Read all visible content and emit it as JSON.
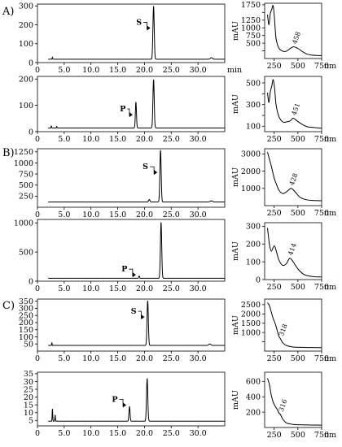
{
  "chart_data": {
    "type": "line",
    "panel_labels": [
      "A)",
      "B)",
      "C)"
    ],
    "x_unit_chrom": "min",
    "x_unit_spec": "nm",
    "y_label_spec": "mAU",
    "chromatograms": [
      {
        "id": "A1",
        "xlim": [
          0,
          35
        ],
        "ylim": [
          0,
          310
        ],
        "x_ticks": [
          0,
          5,
          10,
          15,
          20,
          25,
          30
        ],
        "x_tick_labels": [
          "0",
          "5.0",
          "10.0",
          "15.0",
          "20.0",
          "25.0",
          "30.0"
        ],
        "y_ticks": [
          0,
          100,
          200,
          300
        ],
        "y_tick_labels": [
          "0",
          "100",
          "200",
          "300"
        ],
        "baseline": 18,
        "peaks": [
          {
            "x": 2.8,
            "y": 28,
            "w": 0.05
          },
          {
            "x": 21.7,
            "y": 300,
            "w": 0.12
          },
          {
            "x": 32.5,
            "y": 26,
            "w": 0.2
          }
        ],
        "labels": [
          {
            "text": "S",
            "x": 19.5,
            "y": 200,
            "peak_x": 21.7
          }
        ]
      },
      {
        "id": "A2",
        "xlim": [
          0,
          35
        ],
        "ylim": [
          0,
          210
        ],
        "x_ticks": [
          0,
          5,
          10,
          15,
          20,
          25,
          30
        ],
        "x_tick_labels": [
          "0",
          "5.0",
          "10.0",
          "15.0",
          "20.0",
          "25.0",
          "30.0"
        ],
        "y_ticks": [
          0,
          100,
          200
        ],
        "y_tick_labels": [
          "0",
          "100",
          "200"
        ],
        "baseline": 14,
        "peaks": [
          {
            "x": 2.6,
            "y": 22,
            "w": 0.05
          },
          {
            "x": 3.6,
            "y": 20,
            "w": 0.05
          },
          {
            "x": 18.4,
            "y": 113,
            "w": 0.1
          },
          {
            "x": 21.7,
            "y": 198,
            "w": 0.12
          }
        ],
        "labels": [
          {
            "text": "P",
            "x": 16.5,
            "y": 77,
            "peak_x": 18.4
          }
        ]
      },
      {
        "id": "B1",
        "xlim": [
          0,
          35
        ],
        "ylim": [
          0,
          1320
        ],
        "x_ticks": [
          0,
          5,
          10,
          15,
          20,
          25,
          30
        ],
        "x_tick_labels": [
          "0",
          "5.0",
          "10.0",
          "15.0",
          "20.0",
          "25.0",
          "30.0"
        ],
        "y_ticks": [
          250,
          500,
          750,
          1000,
          1250
        ],
        "y_tick_labels": [
          "250",
          "500",
          "750",
          "1000",
          "1250"
        ],
        "baseline": 120,
        "peaks": [
          {
            "x": 20.9,
            "y": 175,
            "w": 0.12
          },
          {
            "x": 23.0,
            "y": 1290,
            "w": 0.12
          },
          {
            "x": 32.5,
            "y": 145,
            "w": 0.2
          }
        ],
        "labels": [
          {
            "text": "S",
            "x": 20.7,
            "y": 860,
            "peak_x": 23.0
          }
        ]
      },
      {
        "id": "B2",
        "xlim": [
          0,
          35
        ],
        "ylim": [
          0,
          1060
        ],
        "x_ticks": [
          0,
          5,
          10,
          15,
          20,
          25,
          30
        ],
        "x_tick_labels": [
          "0",
          "5.0",
          "10.0",
          "15.0",
          "20.0",
          "25.0",
          "30.0"
        ],
        "y_ticks": [
          0,
          500,
          1000
        ],
        "y_tick_labels": [
          "0",
          "500",
          "1000"
        ],
        "baseline": 50,
        "peaks": [
          {
            "x": 19.0,
            "y": 90,
            "w": 0.08
          },
          {
            "x": 23.1,
            "y": 1010,
            "w": 0.12
          }
        ],
        "labels": [
          {
            "text": "P",
            "x": 16.8,
            "y": 165,
            "peak_x": 19.0
          }
        ]
      },
      {
        "id": "C1",
        "xlim": [
          0,
          35
        ],
        "ylim": [
          0,
          365
        ],
        "x_ticks": [
          0,
          5,
          10,
          15,
          20,
          25,
          30
        ],
        "x_tick_labels": [
          "0",
          "5.0",
          "10.0",
          "15.0",
          "20.0",
          "25.0",
          "30.0"
        ],
        "y_ticks": [
          50,
          100,
          150,
          200,
          250,
          300,
          350
        ],
        "y_tick_labels": [
          "50",
          "100",
          "150",
          "200",
          "250",
          "300",
          "350"
        ],
        "baseline": 40,
        "peaks": [
          {
            "x": 2.7,
            "y": 60,
            "w": 0.04
          },
          {
            "x": 20.6,
            "y": 355,
            "w": 0.12
          },
          {
            "x": 32.2,
            "y": 50,
            "w": 0.2
          }
        ],
        "labels": [
          {
            "text": "S",
            "x": 18.5,
            "y": 262,
            "peak_x": 20.6
          }
        ]
      },
      {
        "id": "C2",
        "xlim": [
          0,
          35
        ],
        "ylim": [
          1.5,
          36
        ],
        "x_ticks": [
          0,
          5,
          10,
          15,
          20,
          25,
          30
        ],
        "x_tick_labels": [
          "0",
          "5.0",
          "10.0",
          "15.0",
          "20.0",
          "25.0",
          "30.0"
        ],
        "y_ticks": [
          5,
          10,
          15,
          20,
          25,
          30,
          35
        ],
        "y_tick_labels": [
          "5",
          "10",
          "15",
          "20",
          "25",
          "30",
          "35"
        ],
        "baseline": 4.5,
        "peaks": [
          {
            "x": 2.8,
            "y": 12.5,
            "w": 0.05
          },
          {
            "x": 3.3,
            "y": 8.5,
            "w": 0.05
          },
          {
            "x": 17.2,
            "y": 14.0,
            "w": 0.1
          },
          {
            "x": 20.5,
            "y": 32.0,
            "w": 0.12
          }
        ],
        "labels": [
          {
            "text": "P",
            "x": 15.0,
            "y": 17,
            "peak_x": 17.2
          }
        ]
      }
    ],
    "spectra": [
      {
        "id": "A1",
        "xlim": [
          150,
          750
        ],
        "ylim": [
          0,
          1800
        ],
        "x_ticks": [
          250,
          500,
          750
        ],
        "x_tick_labels": [
          "250",
          "500",
          "750"
        ],
        "y_ticks": [
          250,
          500,
          750,
          1000,
          1250,
          1500,
          1750
        ],
        "y_tick_labels": [
          "",
          "500",
          "750",
          "1000",
          "1250",
          "",
          "1750"
        ],
        "points": [
          [
            180,
            1430
          ],
          [
            195,
            1100
          ],
          [
            210,
            1470
          ],
          [
            225,
            1600
          ],
          [
            240,
            1720
          ],
          [
            255,
            1250
          ],
          [
            270,
            650
          ],
          [
            300,
            340
          ],
          [
            340,
            240
          ],
          [
            380,
            240
          ],
          [
            420,
            330
          ],
          [
            458,
            380
          ],
          [
            500,
            330
          ],
          [
            550,
            220
          ],
          [
            600,
            140
          ],
          [
            650,
            110
          ],
          [
            700,
            100
          ],
          [
            750,
            95
          ]
        ],
        "annotation": {
          "text": "458",
          "x": 458
        }
      },
      {
        "id": "A2",
        "xlim": [
          150,
          750
        ],
        "ylim": [
          50,
          560
        ],
        "x_ticks": [
          250,
          500,
          750
        ],
        "x_tick_labels": [
          "250",
          "500",
          "750"
        ],
        "y_ticks": [
          100,
          200,
          300,
          400,
          500
        ],
        "y_tick_labels": [
          "100",
          "",
          "300",
          "",
          "500"
        ],
        "points": [
          [
            180,
            410
          ],
          [
            195,
            320
          ],
          [
            210,
            420
          ],
          [
            225,
            470
          ],
          [
            240,
            530
          ],
          [
            255,
            450
          ],
          [
            270,
            300
          ],
          [
            300,
            190
          ],
          [
            340,
            140
          ],
          [
            380,
            140
          ],
          [
            420,
            150
          ],
          [
            451,
            175
          ],
          [
            490,
            150
          ],
          [
            540,
            120
          ],
          [
            600,
            95
          ],
          [
            650,
            90
          ],
          [
            700,
            85
          ],
          [
            750,
            82
          ]
        ],
        "annotation": {
          "text": "451",
          "x": 451
        }
      },
      {
        "id": "B1",
        "xlim": [
          150,
          750
        ],
        "ylim": [
          0,
          3300
        ],
        "x_ticks": [
          250,
          500,
          750
        ],
        "x_tick_labels": [
          "250",
          "500",
          "750"
        ],
        "y_ticks": [
          1000,
          2000,
          3000
        ],
        "y_tick_labels": [
          "1000",
          "2000",
          "3000"
        ],
        "points": [
          [
            180,
            3100
          ],
          [
            200,
            2700
          ],
          [
            220,
            2300
          ],
          [
            250,
            1600
          ],
          [
            270,
            1300
          ],
          [
            300,
            900
          ],
          [
            340,
            700
          ],
          [
            380,
            800
          ],
          [
            428,
            1000
          ],
          [
            470,
            800
          ],
          [
            520,
            500
          ],
          [
            580,
            350
          ],
          [
            650,
            300
          ],
          [
            700,
            290
          ],
          [
            750,
            280
          ]
        ],
        "annotation": {
          "text": "428",
          "x": 428
        }
      },
      {
        "id": "B2",
        "xlim": [
          150,
          750
        ],
        "ylim": [
          0,
          320
        ],
        "x_ticks": [
          250,
          500,
          750
        ],
        "x_tick_labels": [
          "250",
          "500",
          "750"
        ],
        "y_ticks": [
          0,
          100,
          200,
          300
        ],
        "y_tick_labels": [
          "0",
          "100",
          "200",
          "300"
        ],
        "points": [
          [
            180,
            290
          ],
          [
            200,
            200
          ],
          [
            220,
            160
          ],
          [
            250,
            190
          ],
          [
            270,
            165
          ],
          [
            300,
            110
          ],
          [
            340,
            80
          ],
          [
            380,
            90
          ],
          [
            414,
            120
          ],
          [
            450,
            100
          ],
          [
            500,
            60
          ],
          [
            560,
            30
          ],
          [
            620,
            20
          ],
          [
            700,
            15
          ],
          [
            750,
            15
          ]
        ],
        "annotation": {
          "text": "414",
          "x": 414
        }
      },
      {
        "id": "C1",
        "xlim": [
          150,
          750
        ],
        "ylim": [
          0,
          2800
        ],
        "x_ticks": [
          250,
          500,
          750
        ],
        "x_tick_labels": [
          "250",
          "500",
          "750"
        ],
        "y_ticks": [
          500,
          1000,
          1500,
          2000,
          2500
        ],
        "y_tick_labels": [
          "",
          "1000",
          "1500",
          "2000",
          "2500"
        ],
        "points": [
          [
            180,
            2600
          ],
          [
            200,
            2450
          ],
          [
            220,
            2100
          ],
          [
            240,
            1750
          ],
          [
            260,
            1500
          ],
          [
            280,
            1150
          ],
          [
            300,
            800
          ],
          [
            318,
            650
          ],
          [
            340,
            450
          ],
          [
            380,
            300
          ],
          [
            450,
            220
          ],
          [
            550,
            200
          ],
          [
            650,
            190
          ],
          [
            750,
            185
          ]
        ],
        "annotation": {
          "text": "318",
          "x": 318
        }
      },
      {
        "id": "C2",
        "xlim": [
          150,
          750
        ],
        "ylim": [
          0,
          720
        ],
        "x_ticks": [
          250,
          500,
          750
        ],
        "x_tick_labels": [
          "250",
          "500",
          "750"
        ],
        "y_ticks": [
          200,
          400,
          600
        ],
        "y_tick_labels": [
          "200",
          "400",
          "600"
        ],
        "points": [
          [
            180,
            640
          ],
          [
            200,
            560
          ],
          [
            220,
            420
          ],
          [
            240,
            330
          ],
          [
            260,
            280
          ],
          [
            280,
            240
          ],
          [
            300,
            190
          ],
          [
            316,
            170
          ],
          [
            340,
            110
          ],
          [
            380,
            60
          ],
          [
            450,
            40
          ],
          [
            550,
            35
          ],
          [
            650,
            32
          ],
          [
            750,
            30
          ]
        ],
        "annotation": {
          "text": "316",
          "x": 316
        }
      }
    ]
  }
}
